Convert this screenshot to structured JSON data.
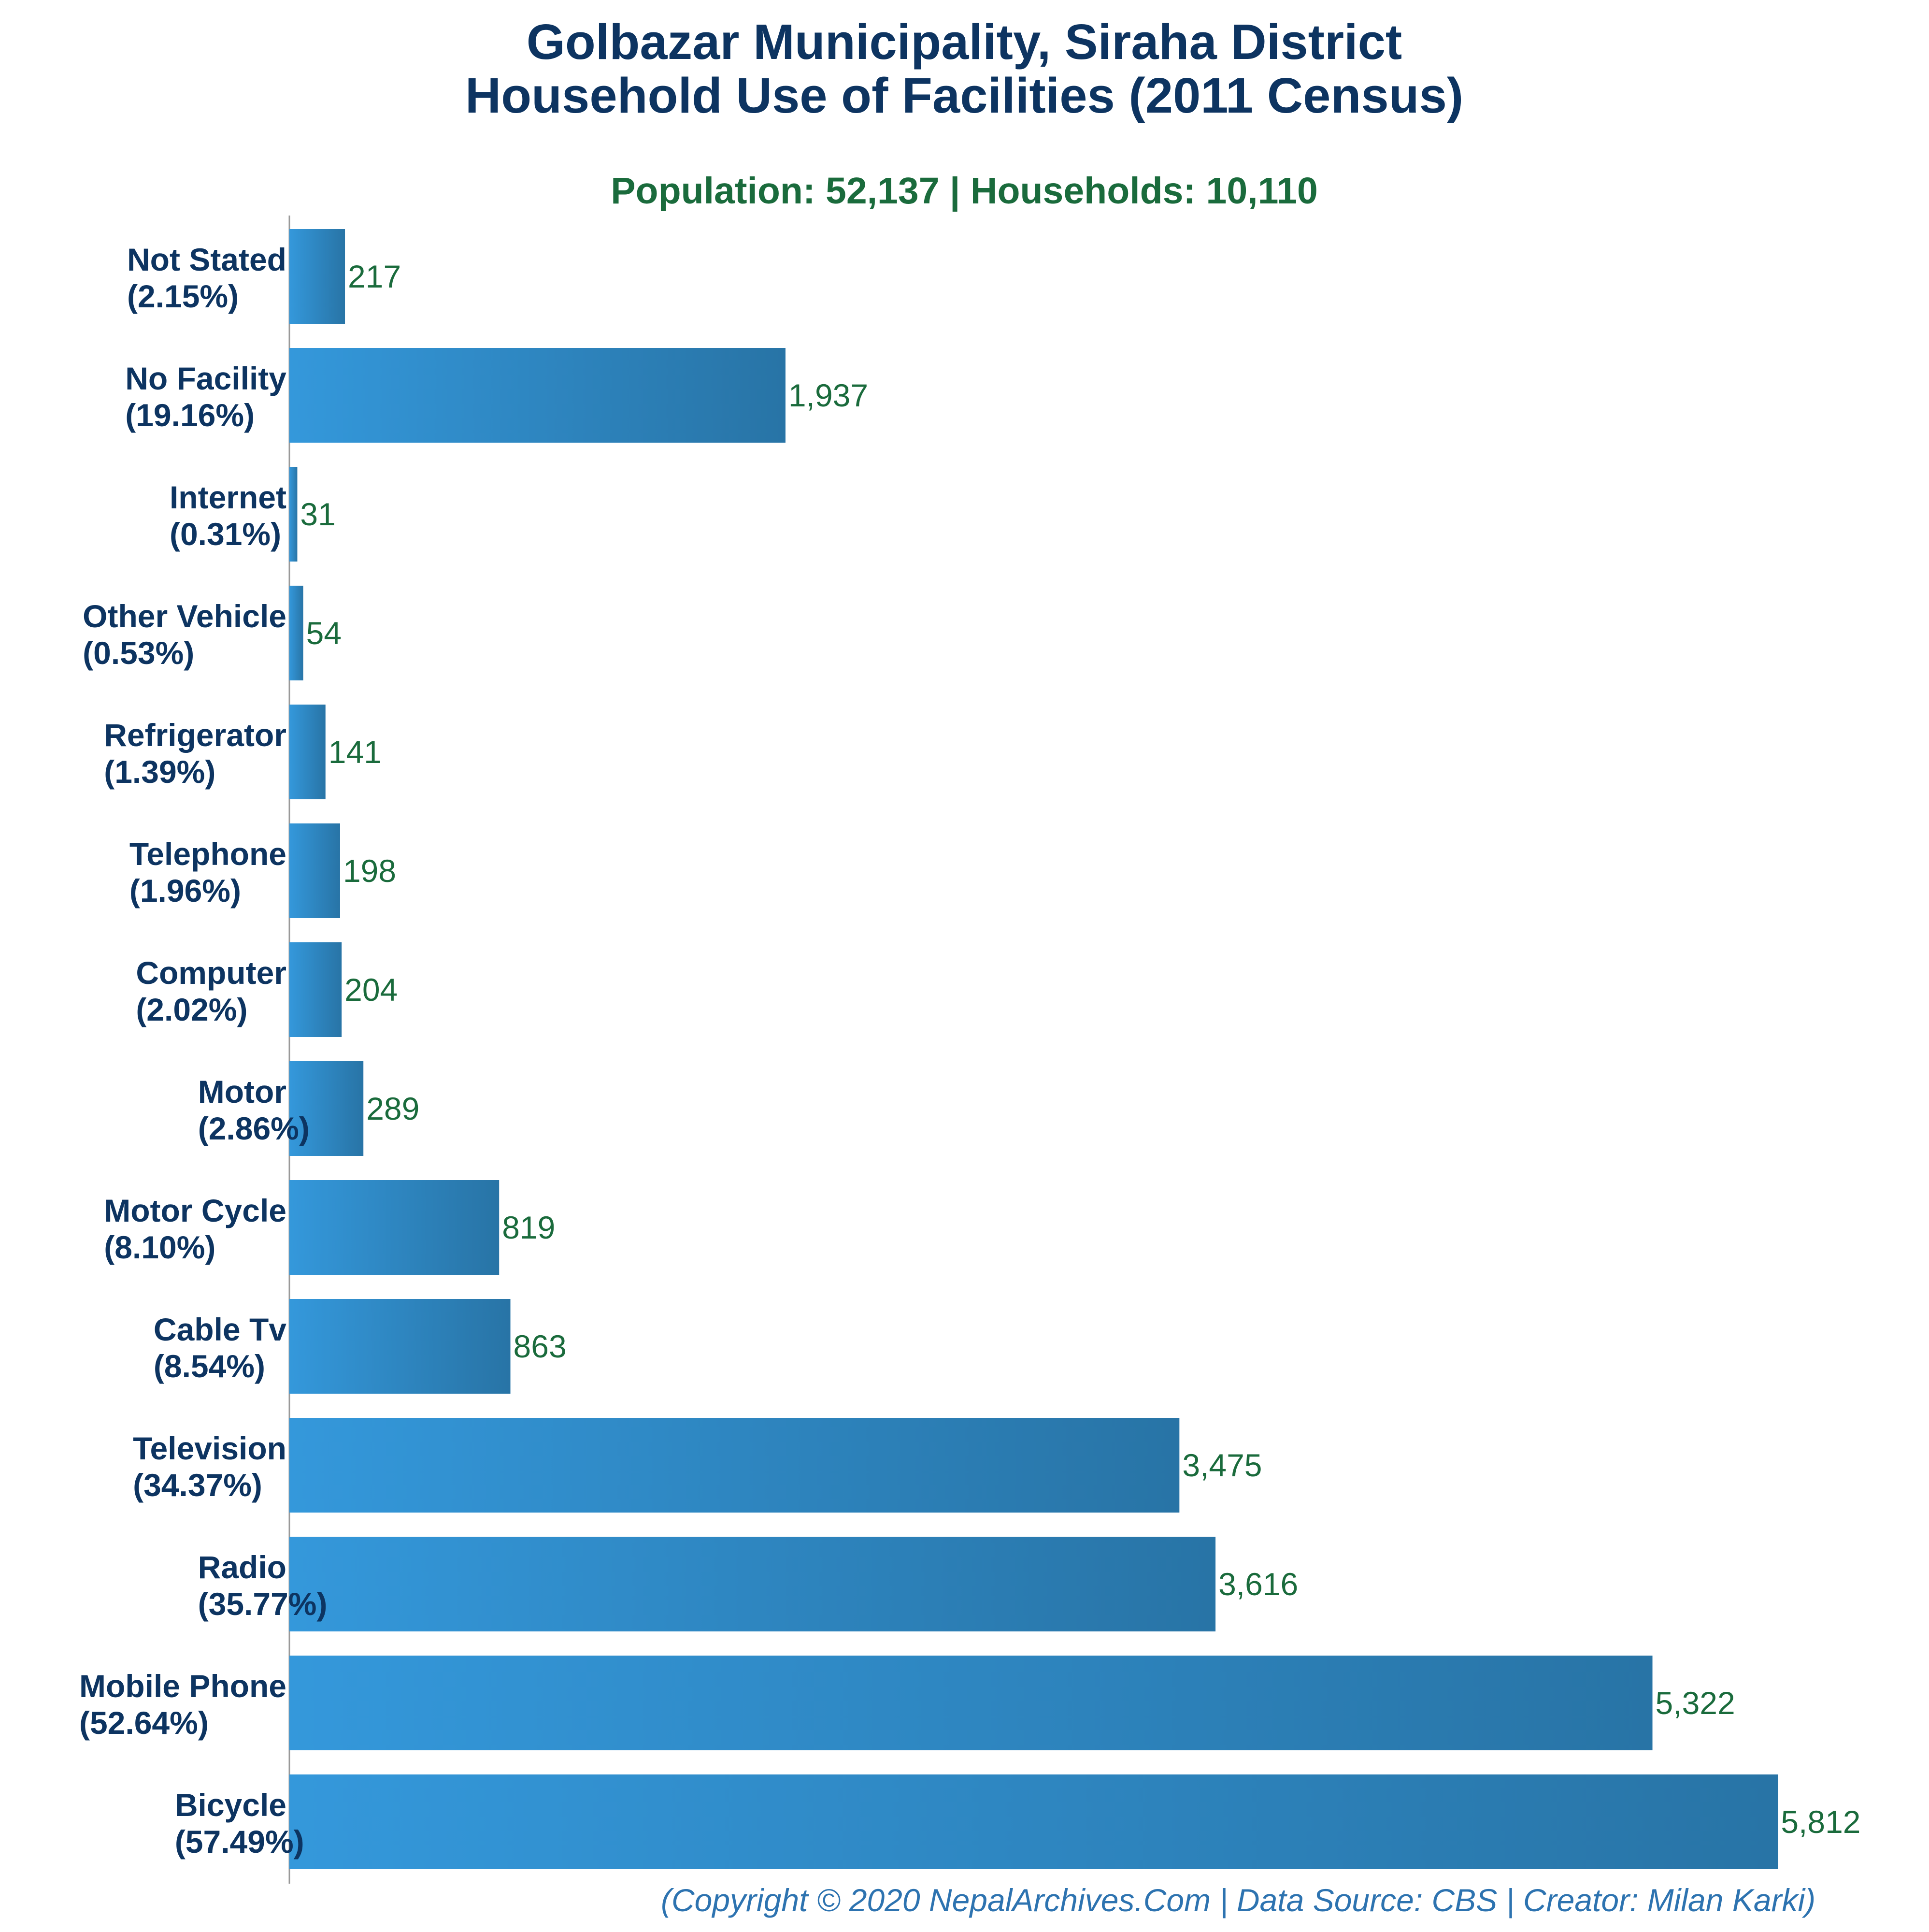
{
  "title_lines": [
    "Golbazar Municipality, Siraha District",
    "Household Use of Facilities (2011 Census)"
  ],
  "subtitle": "Population: 52,137 | Households: 10,110",
  "footer": "(Copyright © 2020 NepalArchives.Com | Data Source: CBS | Creator: Milan Karki)",
  "colors": {
    "bar_light": "#3498db",
    "bar_dark": "#2874a6",
    "title": "#0d3461",
    "value_text": "#1a6b3c",
    "footer": "#2d73b0",
    "axis": "#999999"
  },
  "chart_data": {
    "type": "bar",
    "orientation": "horizontal",
    "title": "Golbazar Municipality, Siraha District Household Use of Facilities (2011 Census)",
    "subtitle": "Population: 52,137 | Households: 10,110",
    "xlim": [
      0,
      6000
    ],
    "grid": false,
    "categories": [
      {
        "name": "Not Stated",
        "pct": "(2.15%)",
        "value": 217,
        "value_label": "217"
      },
      {
        "name": "No Facility",
        "pct": "(19.16%)",
        "value": 1937,
        "value_label": "1,937"
      },
      {
        "name": "Internet",
        "pct": "(0.31%)",
        "value": 31,
        "value_label": "31"
      },
      {
        "name": "Other Vehicle",
        "pct": "(0.53%)",
        "value": 54,
        "value_label": "54"
      },
      {
        "name": "Refrigerator",
        "pct": "(1.39%)",
        "value": 141,
        "value_label": "141"
      },
      {
        "name": "Telephone",
        "pct": "(1.96%)",
        "value": 198,
        "value_label": "198"
      },
      {
        "name": "Computer",
        "pct": "(2.02%)",
        "value": 204,
        "value_label": "204"
      },
      {
        "name": "Motor",
        "pct": "(2.86%)",
        "value": 289,
        "value_label": "289"
      },
      {
        "name": "Motor Cycle",
        "pct": "(8.10%)",
        "value": 819,
        "value_label": "819"
      },
      {
        "name": "Cable Tv",
        "pct": "(8.54%)",
        "value": 863,
        "value_label": "863"
      },
      {
        "name": "Television",
        "pct": "(34.37%)",
        "value": 3475,
        "value_label": "3,475"
      },
      {
        "name": "Radio",
        "pct": "(35.77%)",
        "value": 3616,
        "value_label": "3,616"
      },
      {
        "name": "Mobile Phone",
        "pct": "(52.64%)",
        "value": 5322,
        "value_label": "5,322"
      },
      {
        "name": "Bicycle",
        "pct": "(57.49%)",
        "value": 5812,
        "value_label": "5,812"
      }
    ]
  }
}
